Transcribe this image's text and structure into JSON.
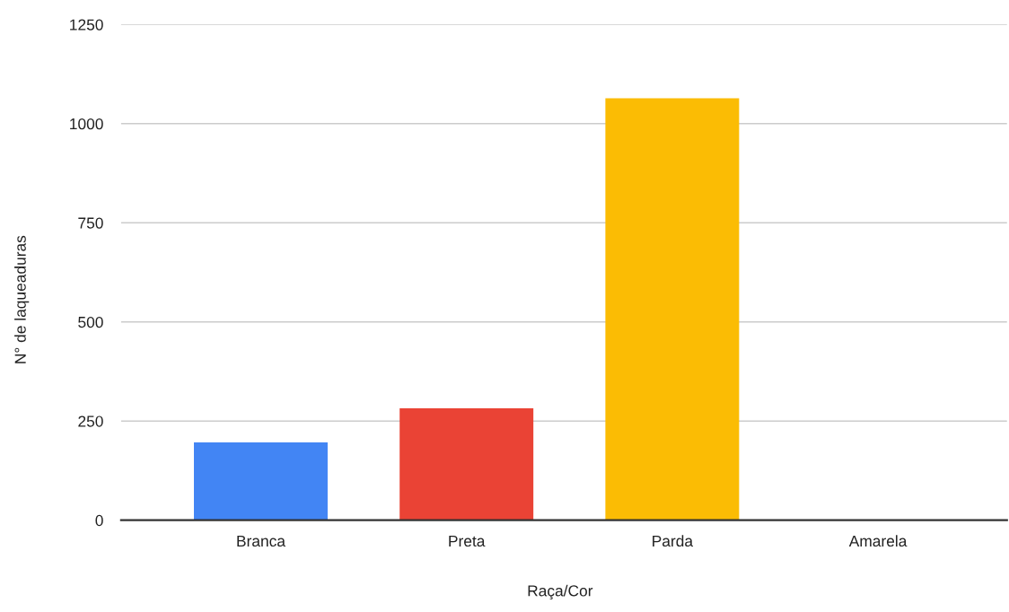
{
  "chart_data": {
    "type": "bar",
    "xlabel": "Raça/Cor",
    "ylabel": "N° de laqueaduras",
    "categories": [
      "Branca",
      "Preta",
      "Parda",
      "Amarela"
    ],
    "values": [
      196,
      282,
      1064,
      0
    ],
    "colors": [
      "#4285f4",
      "#ea4335",
      "#fbbc04",
      "#34a853"
    ],
    "ylim": [
      0,
      1250
    ],
    "yticks": [
      0,
      250,
      500,
      750,
      1000,
      1250
    ],
    "grid": "y"
  }
}
